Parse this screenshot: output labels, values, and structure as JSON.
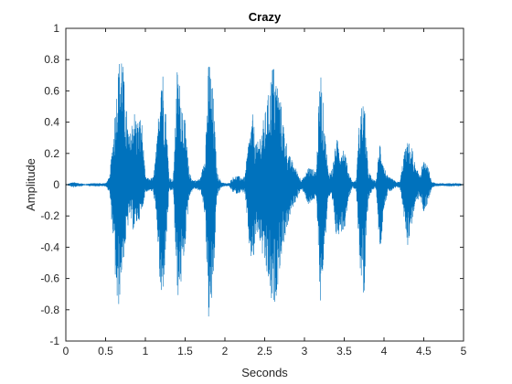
{
  "chart_data": {
    "type": "line",
    "title": "Crazy",
    "xlabel": "Seconds",
    "ylabel": "Amplitude",
    "xlim": [
      0,
      5
    ],
    "ylim": [
      -1,
      1
    ],
    "xticks": [
      "0",
      "0.5",
      "1",
      "1.5",
      "2",
      "2.5",
      "3",
      "3.5",
      "4",
      "4.5",
      "5"
    ],
    "yticks": [
      "-1",
      "-0.8",
      "-0.6",
      "-0.4",
      "-0.2",
      "0",
      "0.2",
      "0.4",
      "0.6",
      "0.8",
      "1"
    ],
    "grid": false,
    "series": [
      {
        "color": "#0072BD",
        "x": [
          0.0,
          0.05,
          0.1,
          0.15,
          0.2,
          0.25,
          0.3,
          0.35,
          0.4,
          0.45,
          0.5,
          0.55,
          0.6,
          0.65,
          0.7,
          0.75,
          0.8,
          0.85,
          0.9,
          0.95,
          1.0,
          1.05,
          1.1,
          1.15,
          1.2,
          1.25,
          1.3,
          1.35,
          1.4,
          1.45,
          1.5,
          1.55,
          1.6,
          1.65,
          1.7,
          1.75,
          1.8,
          1.85,
          1.9,
          1.95,
          2.0,
          2.05,
          2.1,
          2.15,
          2.2,
          2.25,
          2.3,
          2.35,
          2.4,
          2.45,
          2.5,
          2.55,
          2.6,
          2.65,
          2.7,
          2.75,
          2.8,
          2.85,
          2.9,
          2.95,
          3.0,
          3.05,
          3.1,
          3.15,
          3.2,
          3.25,
          3.3,
          3.35,
          3.4,
          3.45,
          3.5,
          3.55,
          3.6,
          3.65,
          3.7,
          3.75,
          3.8,
          3.85,
          3.9,
          3.95,
          4.0,
          4.05,
          4.1,
          4.15,
          4.2,
          4.25,
          4.3,
          4.35,
          4.4,
          4.45,
          4.5,
          4.55,
          4.6,
          4.65,
          4.7,
          4.75,
          4.8,
          4.85,
          4.9,
          4.95,
          5.0
        ],
        "upper": [
          0,
          0.01,
          0.02,
          0.01,
          0.01,
          0,
          0.01,
          0.01,
          0.01,
          0.01,
          0.01,
          0.05,
          0.35,
          0.72,
          0.92,
          0.55,
          0.3,
          0.5,
          0.42,
          0.45,
          0.05,
          0.04,
          0.05,
          0.3,
          0.88,
          0.55,
          0.05,
          0.03,
          0.75,
          0.62,
          0.4,
          0.08,
          0.03,
          0.03,
          0.05,
          0.22,
          0.85,
          0.6,
          0.08,
          0.02,
          0.01,
          0.01,
          0.05,
          0.06,
          0.05,
          0.05,
          0.3,
          0.45,
          0.25,
          0.35,
          0.45,
          0.6,
          0.8,
          0.7,
          0.55,
          0.35,
          0.2,
          0.15,
          0.1,
          0.04,
          0.05,
          0.12,
          0.1,
          0.1,
          0.78,
          0.4,
          0.08,
          0.1,
          0.3,
          0.25,
          0.25,
          0.1,
          0.02,
          0.03,
          0.5,
          0.55,
          0.1,
          0.04,
          0.02,
          0.3,
          0.12,
          0.05,
          0.04,
          0.02,
          0.02,
          0.2,
          0.28,
          0.25,
          0.1,
          0.08,
          0.15,
          0.12,
          0.02,
          0.01,
          0.01,
          0.01,
          0.01,
          0.01,
          0.01,
          0.01,
          0
        ],
        "lower": [
          0,
          -0.01,
          -0.02,
          -0.01,
          -0.01,
          0,
          -0.01,
          -0.01,
          -0.01,
          -0.01,
          -0.01,
          -0.05,
          -0.4,
          -0.88,
          -0.6,
          -0.4,
          -0.2,
          -0.3,
          -0.25,
          -0.2,
          -0.05,
          -0.04,
          -0.05,
          -0.3,
          -0.86,
          -0.5,
          -0.05,
          -0.03,
          -0.75,
          -0.65,
          -0.4,
          -0.08,
          -0.03,
          -0.03,
          -0.05,
          -0.2,
          -0.95,
          -0.7,
          -0.08,
          -0.02,
          -0.01,
          -0.01,
          -0.05,
          -0.06,
          -0.05,
          -0.05,
          -0.4,
          -0.55,
          -0.3,
          -0.4,
          -0.55,
          -0.65,
          -0.85,
          -0.7,
          -0.5,
          -0.35,
          -0.25,
          -0.15,
          -0.1,
          -0.04,
          -0.05,
          -0.15,
          -0.1,
          -0.1,
          -0.78,
          -0.45,
          -0.08,
          -0.12,
          -0.35,
          -0.3,
          -0.3,
          -0.1,
          -0.02,
          -0.03,
          -0.55,
          -0.82,
          -0.1,
          -0.04,
          -0.02,
          -0.45,
          -0.15,
          -0.05,
          -0.04,
          -0.02,
          -0.02,
          -0.2,
          -0.4,
          -0.25,
          -0.12,
          -0.08,
          -0.18,
          -0.12,
          -0.02,
          -0.01,
          -0.01,
          -0.01,
          -0.01,
          -0.01,
          -0.01,
          -0.01,
          0
        ]
      }
    ]
  }
}
